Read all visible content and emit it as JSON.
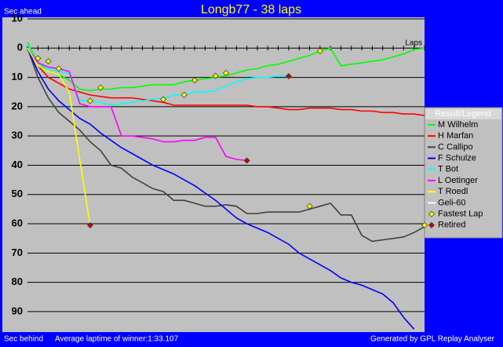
{
  "chart_data": {
    "type": "line",
    "title": "Longb77 - 38 laps",
    "y_label_top": "Sec ahead",
    "y_label_bottom": "Sec behind",
    "footer_note": "Average laptime of winner:1:33.107",
    "credit": "Generated by GPL Replay Analyser",
    "x_label": "Laps",
    "legend_title": "Result/Legend",
    "y_inverted": true,
    "grid": true,
    "xlim": [
      0,
      38
    ],
    "xticks": [
      0,
      1,
      2,
      3,
      4,
      5,
      6,
      7,
      8,
      9,
      10,
      11,
      12,
      13,
      14,
      15,
      16,
      17,
      18,
      19,
      20,
      21,
      22,
      23,
      24,
      25,
      26,
      27,
      28,
      29,
      30,
      31,
      32,
      33,
      34,
      35,
      36,
      37,
      38
    ],
    "ylim": [
      -10,
      97
    ],
    "yticks": [
      {
        "value": -10,
        "label": "10"
      },
      0,
      10,
      20,
      30,
      40,
      50,
      60,
      70,
      80,
      90
    ],
    "x": [
      0,
      1,
      2,
      3,
      4,
      5,
      6,
      7,
      8,
      9,
      10,
      11,
      12,
      13,
      14,
      15,
      16,
      17,
      18,
      19,
      20,
      21,
      22,
      23,
      24,
      25,
      26,
      27,
      28,
      29,
      30,
      31,
      32,
      33,
      34,
      35,
      36,
      37,
      38
    ],
    "series": [
      {
        "name": "M Wilhelm",
        "color": "#00ff00",
        "values": [
          -2,
          5,
          8,
          9,
          11,
          14,
          14.5,
          14,
          14,
          13.5,
          13.5,
          13,
          12.5,
          12.5,
          12.5,
          11.5,
          11,
          10.5,
          10,
          9.5,
          8.5,
          7.5,
          7,
          6,
          5.5,
          4.5,
          3.5,
          2.5,
          1,
          0,
          6,
          5.5,
          5,
          4.5,
          4,
          3,
          2,
          0.5,
          0
        ]
      },
      {
        "name": "H Marfan",
        "color": "#ff0000",
        "values": [
          0,
          6,
          10,
          12,
          14,
          15,
          16,
          16.5,
          17,
          17,
          17,
          17.5,
          18,
          18.5,
          19.5,
          19.5,
          19.5,
          19.5,
          19.5,
          19.5,
          19.5,
          19.5,
          20,
          20,
          20.5,
          21,
          21,
          20.5,
          20.5,
          20.5,
          21,
          21,
          21.5,
          21.5,
          22,
          22,
          22.5,
          22.5,
          23
        ]
      },
      {
        "name": "C Callipo",
        "color": "#404040",
        "values": [
          0,
          10,
          17,
          22,
          25,
          28,
          32,
          35,
          40,
          41,
          44,
          46,
          48,
          49,
          52,
          52,
          53,
          54,
          54,
          53.5,
          54,
          56.5,
          56.5,
          56,
          56,
          56,
          56,
          55,
          54,
          53,
          57,
          57,
          64,
          66,
          65.5,
          65,
          64.5,
          63,
          61
        ]
      },
      {
        "name": "F Schulze",
        "color": "#0000ff",
        "values": [
          0,
          8,
          14,
          18,
          21,
          24,
          26,
          29,
          31.5,
          34,
          36,
          38,
          40,
          41.5,
          43,
          45,
          47,
          49.5,
          52,
          55,
          58,
          60,
          61.5,
          63,
          65,
          67,
          70,
          72,
          74,
          76,
          78.5,
          80,
          81,
          82.5,
          84,
          87,
          92,
          96,
          null
        ]
      },
      {
        "name": "T Bot",
        "color": "#00ffff",
        "values": [
          -1,
          5,
          7,
          8,
          8.5,
          18,
          18,
          18.5,
          19.5,
          19,
          18.5,
          18,
          17.5,
          17,
          16,
          16,
          15,
          15,
          14.5,
          13,
          11.5,
          10.5,
          10,
          10,
          9.5,
          9.6,
          null,
          null,
          null,
          null,
          null,
          null,
          null,
          null,
          null,
          null,
          null,
          null,
          null
        ]
      },
      {
        "name": "L Oetinger",
        "color": "#ff00ff",
        "values": [
          0,
          5,
          6.5,
          7,
          8,
          19,
          20,
          20,
          20,
          30,
          30,
          30.5,
          31,
          32,
          32,
          31.5,
          31.5,
          30.5,
          30.5,
          37,
          38,
          38.4,
          null,
          null,
          null,
          null,
          null,
          null,
          null,
          null,
          null,
          null,
          null,
          null,
          null,
          null,
          null,
          null,
          null
        ]
      },
      {
        "name": "T Roedl",
        "color": "#ffff00",
        "values": [
          0,
          6,
          8,
          9,
          15,
          38,
          60.5,
          null,
          null,
          null,
          null,
          null,
          null,
          null,
          null,
          null,
          null,
          null,
          null,
          null,
          null,
          null,
          null,
          null,
          null,
          null,
          null,
          null,
          null,
          null,
          null,
          null,
          null,
          null,
          null,
          null,
          null,
          null,
          null
        ]
      },
      {
        "name": "Geli-60",
        "color": "#ffffff",
        "values": [
          null,
          null,
          null,
          null,
          null,
          null,
          null,
          null,
          null,
          null,
          null,
          null,
          null,
          null,
          null,
          null,
          null,
          null,
          null,
          null,
          null,
          null,
          null,
          null,
          null,
          null,
          null,
          null,
          null,
          null,
          null,
          null,
          null,
          null,
          null,
          null,
          null,
          null,
          null
        ]
      }
    ],
    "fastest_lap": {
      "name": "Fastest Lap",
      "color": "#ffff00",
      "x": [
        1,
        2,
        3,
        6,
        7,
        13,
        15,
        16,
        18,
        19,
        27,
        28,
        38
      ],
      "values": [
        3.5,
        4.5,
        7,
        18,
        13.5,
        17.5,
        16,
        11,
        9.5,
        8.5,
        54,
        1,
        60.5
      ]
    },
    "retired": {
      "name": "Retired",
      "color": "#cc0000",
      "x": [
        6,
        21,
        25
      ],
      "values": [
        60.5,
        38.4,
        9.6
      ]
    }
  }
}
